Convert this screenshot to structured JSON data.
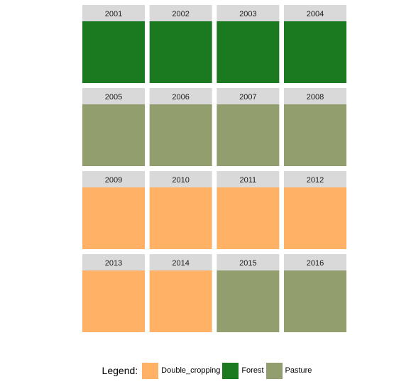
{
  "chart_data": {
    "type": "heatmap",
    "facets": [
      {
        "year": "2001",
        "class": "Forest"
      },
      {
        "year": "2002",
        "class": "Forest"
      },
      {
        "year": "2003",
        "class": "Forest"
      },
      {
        "year": "2004",
        "class": "Forest"
      },
      {
        "year": "2005",
        "class": "Pasture"
      },
      {
        "year": "2006",
        "class": "Pasture"
      },
      {
        "year": "2007",
        "class": "Pasture"
      },
      {
        "year": "2008",
        "class": "Pasture"
      },
      {
        "year": "2009",
        "class": "Double_cropping"
      },
      {
        "year": "2010",
        "class": "Double_cropping"
      },
      {
        "year": "2011",
        "class": "Double_cropping"
      },
      {
        "year": "2012",
        "class": "Double_cropping"
      },
      {
        "year": "2013",
        "class": "Double_cropping"
      },
      {
        "year": "2014",
        "class": "Double_cropping"
      },
      {
        "year": "2015",
        "class": "Pasture"
      },
      {
        "year": "2016",
        "class": "Pasture"
      }
    ],
    "legend": {
      "title": "Legend:",
      "placement": "bottom",
      "items": [
        {
          "label": "Double_cropping",
          "color": "#FFB266"
        },
        {
          "label": "Forest",
          "color": "#1B791F"
        },
        {
          "label": "Pasture",
          "color": "#929E6E"
        }
      ]
    },
    "strip_color": "#D9D9D9"
  }
}
